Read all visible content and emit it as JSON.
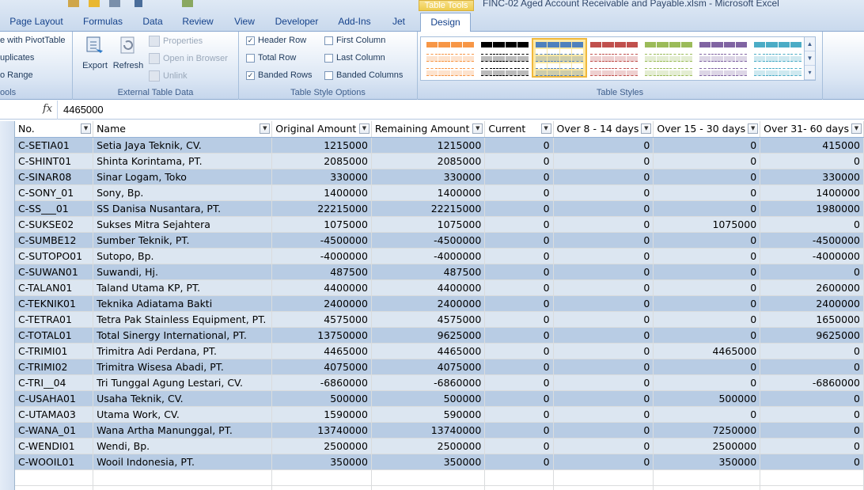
{
  "window": {
    "title": "FINC-02 Aged Account Receivable and Payable.xlsm - Microsoft Excel",
    "context_tab": "Table Tools"
  },
  "tabs": [
    "Page Layout",
    "Formulas",
    "Data",
    "Review",
    "View",
    "Developer",
    "Add-Ins",
    "Jet",
    "Design"
  ],
  "ribbon": {
    "tools_group": {
      "items": [
        "e with PivotTable",
        "uplicates",
        "o Range"
      ],
      "label": "ools"
    },
    "external_group": {
      "export_label": "Export",
      "refresh_label": "Refresh",
      "properties_label": "Properties",
      "open_browser_label": "Open in Browser",
      "unlink_label": "Unlink",
      "label": "External Table Data"
    },
    "style_options": {
      "header_row": {
        "label": "Header Row",
        "checked": true
      },
      "total_row": {
        "label": "Total Row",
        "checked": false
      },
      "banded_rows": {
        "label": "Banded Rows",
        "checked": true
      },
      "first_column": {
        "label": "First Column",
        "checked": false
      },
      "last_column": {
        "label": "Last Column",
        "checked": false
      },
      "banded_columns": {
        "label": "Banded Columns",
        "checked": false
      },
      "label": "Table Style Options"
    },
    "table_styles": {
      "label": "Table Styles",
      "swatches": [
        {
          "name": "orange",
          "color": "#f79646",
          "selected": false
        },
        {
          "name": "black",
          "color": "#000000",
          "selected": false
        },
        {
          "name": "blue",
          "color": "#4f81bd",
          "selected": true
        },
        {
          "name": "red",
          "color": "#c0504d",
          "selected": false
        },
        {
          "name": "green",
          "color": "#9bbb59",
          "selected": false
        },
        {
          "name": "purple",
          "color": "#8064a2",
          "selected": false
        },
        {
          "name": "aqua",
          "color": "#4bacc6",
          "selected": false
        }
      ]
    }
  },
  "formula_bar": {
    "fx": "fx",
    "value": "4465000"
  },
  "table": {
    "headers": [
      "No.",
      "Name",
      "Original Amount",
      "Remaining Amount",
      "Current",
      "Over 8 - 14 days",
      "Over 15 - 30 days",
      "Over 31- 60 days"
    ],
    "rows": [
      [
        "C-SETIA01",
        "Setia Jaya Teknik, CV.",
        "1215000",
        "1215000",
        "0",
        "0",
        "0",
        "415000"
      ],
      [
        "C-SHINT01",
        "Shinta Korintama, PT.",
        "2085000",
        "2085000",
        "0",
        "0",
        "0",
        "0"
      ],
      [
        "C-SINAR08",
        "Sinar Logam, Toko",
        "330000",
        "330000",
        "0",
        "0",
        "0",
        "330000"
      ],
      [
        "C-SONY_01",
        "Sony, Bp.",
        "1400000",
        "1400000",
        "0",
        "0",
        "0",
        "1400000"
      ],
      [
        "C-SS___01",
        "SS Danisa Nusantara, PT.",
        "22215000",
        "22215000",
        "0",
        "0",
        "0",
        "1980000"
      ],
      [
        "C-SUKSE02",
        "Sukses Mitra Sejahtera",
        "1075000",
        "1075000",
        "0",
        "0",
        "1075000",
        "0"
      ],
      [
        "C-SUMBE12",
        "Sumber Teknik, PT.",
        "-4500000",
        "-4500000",
        "0",
        "0",
        "0",
        "-4500000"
      ],
      [
        "C-SUTOPO01",
        "Sutopo, Bp.",
        "-4000000",
        "-4000000",
        "0",
        "0",
        "0",
        "-4000000"
      ],
      [
        "C-SUWAN01",
        "Suwandi, Hj.",
        "487500",
        "487500",
        "0",
        "0",
        "0",
        "0"
      ],
      [
        "C-TALAN01",
        "Taland Utama KP, PT.",
        "4400000",
        "4400000",
        "0",
        "0",
        "0",
        "2600000"
      ],
      [
        "C-TEKNIK01",
        "Teknika Adiatama Bakti",
        "2400000",
        "2400000",
        "0",
        "0",
        "0",
        "2400000"
      ],
      [
        "C-TETRA01",
        "Tetra Pak Stainless Equipment, PT.",
        "4575000",
        "4575000",
        "0",
        "0",
        "0",
        "1650000"
      ],
      [
        "C-TOTAL01",
        "Total Sinergy International, PT.",
        "13750000",
        "9625000",
        "0",
        "0",
        "0",
        "9625000"
      ],
      [
        "C-TRIMI01",
        "Trimitra Adi Perdana, PT.",
        "4465000",
        "4465000",
        "0",
        "0",
        "4465000",
        "0"
      ],
      [
        "C-TRIMI02",
        "Trimitra Wisesa Abadi, PT.",
        "4075000",
        "4075000",
        "0",
        "0",
        "0",
        "0"
      ],
      [
        "C-TRI__04",
        "Tri Tunggal Agung Lestari, CV.",
        "-6860000",
        "-6860000",
        "0",
        "0",
        "0",
        "-6860000"
      ],
      [
        "C-USAHA01",
        "Usaha Teknik, CV.",
        "500000",
        "500000",
        "0",
        "0",
        "500000",
        "0"
      ],
      [
        "C-UTAMA03",
        "Utama Work, CV.",
        "1590000",
        "590000",
        "0",
        "0",
        "0",
        "0"
      ],
      [
        "C-WANA_01",
        "Wana Artha Manunggal, PT.",
        "13740000",
        "13740000",
        "0",
        "0",
        "7250000",
        "0"
      ],
      [
        "C-WENDI01",
        "Wendi, Bp.",
        "2500000",
        "2500000",
        "0",
        "0",
        "2500000",
        "0"
      ],
      [
        "C-WOOIL01",
        "Wooil Indonesia, PT.",
        "350000",
        "350000",
        "0",
        "0",
        "350000",
        "0"
      ]
    ]
  }
}
